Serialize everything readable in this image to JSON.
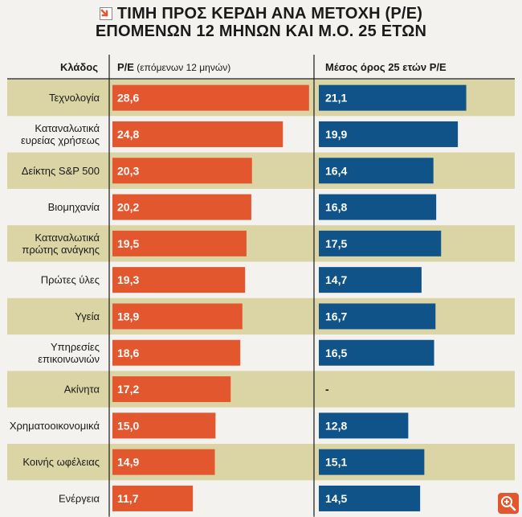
{
  "title_lines": [
    "ΤΙΜΗ ΠΡΟΣ ΚΕΡΔΗ ΑΝΑ ΜΕΤΟΧΗ (P/E)",
    "ΕΠΟΜΕΝΩΝ 12 ΜΗΝΩΝ ΚΑΙ Μ.Ο. 25 ΕΤΩΝ"
  ],
  "colors": {
    "pe_bar": "#e2572e",
    "avg_bar": "#0f5388",
    "row_band": "#dbd5a6",
    "background": "#f3f2ef",
    "divider": "#1a1a1a"
  },
  "icons": {
    "title": "arrow-badge-icon",
    "corner": "zoom-icon"
  },
  "chart_data": {
    "type": "bar",
    "orientation": "horizontal",
    "header": {
      "category": "Κλάδος",
      "pe_main": "P/E",
      "pe_sub": "(επόμενων 12 μηνών)",
      "avg": "Μέσος όρος 25 ετών P/E"
    },
    "categories": [
      [
        "Τεχνολογία"
      ],
      [
        "Καταναλωτικά",
        "ευρείας χρήσεως"
      ],
      [
        "Δείκτης S&P 500"
      ],
      [
        "Βιομηχανία"
      ],
      [
        "Καταναλωτικά",
        "πρώτης ανάγκης"
      ],
      [
        "Πρώτες ύλες"
      ],
      [
        "Υγεία"
      ],
      [
        "Υπηρεσίες",
        "επικοινωνιών"
      ],
      [
        "Ακίνητα"
      ],
      [
        "Χρηματοοικονομικά"
      ],
      [
        "Κοινής ωφέλειας"
      ],
      [
        "Ενέργεια"
      ]
    ],
    "series": [
      {
        "name": "P/E (επόμενων 12 μηνών)",
        "values": [
          28.6,
          24.8,
          20.3,
          20.2,
          19.5,
          19.3,
          18.9,
          18.6,
          17.2,
          15.0,
          14.9,
          11.7
        ],
        "labels": [
          "28,6",
          "24,8",
          "20,3",
          "20,2",
          "19,5",
          "19,3",
          "18,9",
          "18,6",
          "17,2",
          "15,0",
          "14,9",
          "11,7"
        ]
      },
      {
        "name": "Μέσος όρος 25 ετών P/E",
        "values": [
          21.1,
          19.9,
          16.4,
          16.8,
          17.5,
          14.7,
          16.7,
          16.5,
          null,
          12.8,
          15.1,
          14.5
        ],
        "labels": [
          "21,1",
          "19,9",
          "16,4",
          "16,8",
          "17,5",
          "14,7",
          "16,7",
          "16,5",
          "-",
          "12,8",
          "15,1",
          "14,5"
        ]
      }
    ],
    "row_shading": "alternating"
  }
}
